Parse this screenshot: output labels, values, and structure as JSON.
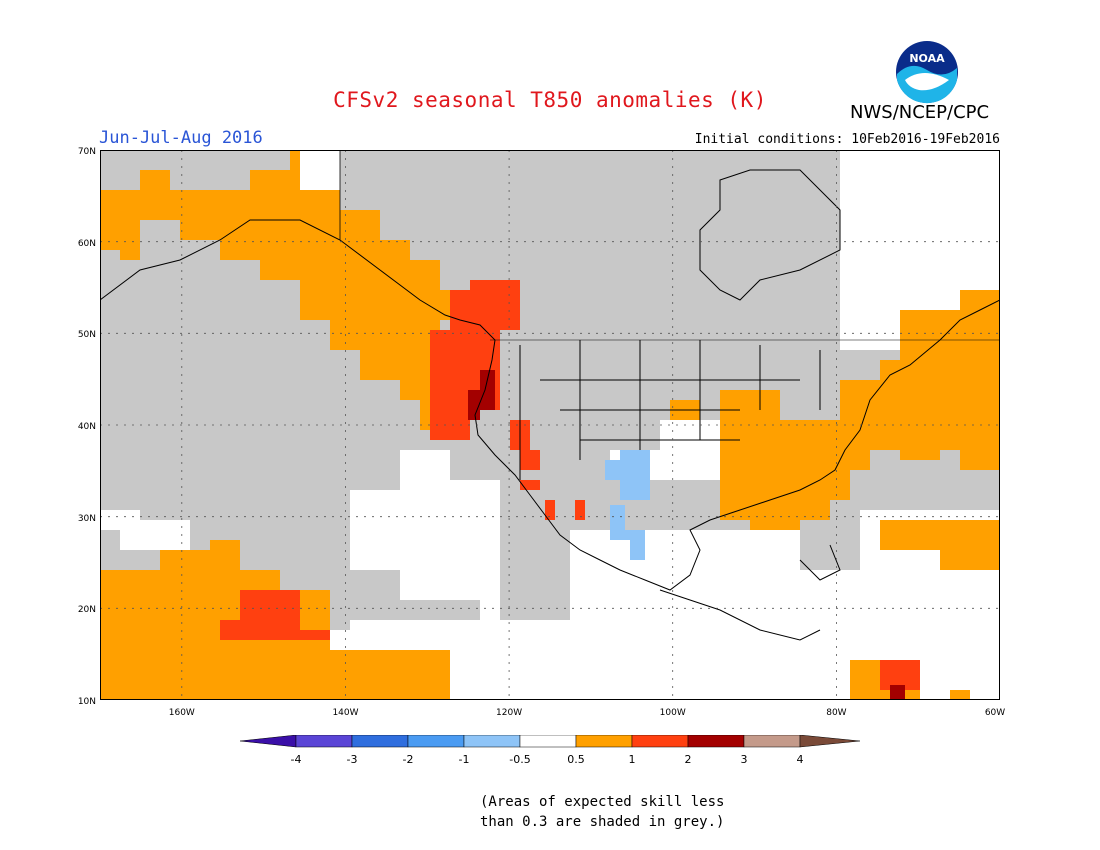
{
  "header": {
    "title": "CFSv2 seasonal T850 anomalies (K)",
    "agency": "NWS/NCEP/CPC",
    "period": "Jun-Jul-Aug 2016",
    "initial_conditions": "Initial conditions: 10Feb2016-19Feb2016",
    "logo_text": "NOAA"
  },
  "map": {
    "lat_labels": [
      "70N",
      "60N",
      "50N",
      "40N",
      "30N",
      "20N",
      "10N"
    ],
    "lon_labels": [
      "160W",
      "140W",
      "120W",
      "100W",
      "80W",
      "60W"
    ],
    "lat_range": [
      10,
      70
    ],
    "lon_range": [
      -170,
      -60
    ],
    "grid": "dotted every 10 degrees"
  },
  "legend": {
    "tick_labels": [
      "-4",
      "-3",
      "-2",
      "-1",
      "-0.5",
      "0.5",
      "1",
      "2",
      "3",
      "4"
    ],
    "colors": {
      "below_-4": "#3a0fa8",
      "-4_-3": "#5a45d6",
      "-3_-2": "#2f6ede",
      "-2_-1": "#4a9bf2",
      "-1_-0.5": "#8ec4f7",
      "-0.5_0.5": "#ffffff",
      "0.5_1": "#ffa000",
      "1_2": "#ff4010",
      "2_3": "#a30000",
      "3_4": "#c49a8a",
      "above_4": "#7a4a38"
    },
    "skill_mask_color": "#c8c8c8"
  },
  "note": {
    "line1": "(Areas of expected skill less",
    "line2": "than 0.3 are shaded in grey.)"
  }
}
